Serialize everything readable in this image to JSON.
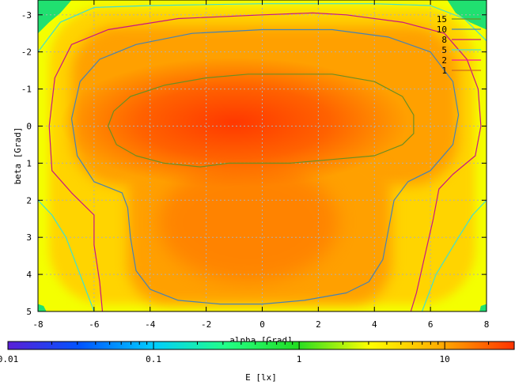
{
  "chart_data": {
    "type": "heatmap",
    "title": "",
    "xlabel": "alpha [Grad]",
    "ylabel": "beta [Grad]",
    "xlim": [
      -8,
      8
    ],
    "ylim": [
      -3.4,
      5
    ],
    "y_axis_direction": "top-to-bottom",
    "grid": true,
    "x_ticks": [
      -8,
      -6,
      -4,
      -2,
      0,
      2,
      4,
      6,
      8
    ],
    "x_tick_labels": [
      "-8",
      "-6",
      "-4",
      "-2",
      "0",
      "2",
      "4",
      "6",
      "8"
    ],
    "y_ticks": [
      -3,
      -2,
      -1,
      0,
      1,
      2,
      3,
      4,
      5
    ],
    "y_tick_labels": [
      "-3",
      "-2",
      "-1",
      "0",
      "1",
      "2",
      "3",
      "4",
      "5"
    ],
    "legend_position": "top-right",
    "contour_levels": [
      {
        "label": "15",
        "color": "#6b8e23"
      },
      {
        "label": "10",
        "color": "#4682b4"
      },
      {
        "label": "8",
        "color": "#c71585"
      },
      {
        "label": "5",
        "color": "#40e0d0"
      },
      {
        "label": "2",
        "color": "#ff1493"
      },
      {
        "label": "1",
        "color": "#d2691e"
      }
    ],
    "contours": [
      {
        "level": 15,
        "points": [
          [
            -5.5,
            0
          ],
          [
            -5.3,
            -0.4
          ],
          [
            -4.7,
            -0.8
          ],
          [
            -3.5,
            -1.1
          ],
          [
            -2,
            -1.3
          ],
          [
            -0.5,
            -1.4
          ],
          [
            1,
            -1.4
          ],
          [
            2.5,
            -1.4
          ],
          [
            4,
            -1.2
          ],
          [
            5,
            -0.8
          ],
          [
            5.4,
            -0.3
          ],
          [
            5.4,
            0.2
          ],
          [
            5,
            0.5
          ],
          [
            4,
            0.8
          ],
          [
            2.5,
            0.9
          ],
          [
            1,
            1
          ],
          [
            -1.2,
            1
          ],
          [
            -2.2,
            1.1
          ],
          [
            -3.5,
            1
          ],
          [
            -4.5,
            0.8
          ],
          [
            -5.2,
            0.5
          ],
          [
            -5.5,
            0
          ]
        ]
      },
      {
        "level": 10,
        "points": [
          [
            -6.8,
            -0.2
          ],
          [
            -6.5,
            -1.2
          ],
          [
            -5.8,
            -1.8
          ],
          [
            -4.5,
            -2.2
          ],
          [
            -2.5,
            -2.5
          ],
          [
            0,
            -2.6
          ],
          [
            2.5,
            -2.6
          ],
          [
            4.5,
            -2.4
          ],
          [
            6,
            -2
          ],
          [
            6.8,
            -1.2
          ],
          [
            7,
            -0.3
          ],
          [
            6.8,
            0.5
          ],
          [
            6,
            1.2
          ],
          [
            5.2,
            1.5
          ],
          [
            4.7,
            2
          ],
          [
            4.5,
            2.8
          ],
          [
            4.3,
            3.6
          ],
          [
            3.8,
            4.2
          ],
          [
            3,
            4.5
          ],
          [
            1.5,
            4.7
          ],
          [
            0,
            4.8
          ],
          [
            -1.5,
            4.8
          ],
          [
            -3,
            4.7
          ],
          [
            -4,
            4.4
          ],
          [
            -4.5,
            3.9
          ],
          [
            -4.7,
            3
          ],
          [
            -4.8,
            2.2
          ],
          [
            -5,
            1.8
          ],
          [
            -6,
            1.5
          ],
          [
            -6.6,
            0.8
          ],
          [
            -6.8,
            -0.2
          ]
        ]
      },
      {
        "level": 8,
        "points": [
          [
            -7.6,
            0
          ],
          [
            -7.4,
            -1.3
          ],
          [
            -6.8,
            -2.2
          ],
          [
            -5.5,
            -2.6
          ],
          [
            -3,
            -2.9
          ],
          [
            0,
            -3
          ],
          [
            1.8,
            -3.05
          ],
          [
            3,
            -3
          ],
          [
            5,
            -2.8
          ],
          [
            6.5,
            -2.5
          ],
          [
            7.3,
            -1.8
          ],
          [
            7.7,
            -1
          ],
          [
            7.8,
            0
          ],
          [
            7.6,
            0.8
          ],
          [
            6.8,
            1.3
          ],
          [
            6.3,
            1.7
          ],
          [
            6.1,
            2.5
          ],
          [
            5.8,
            3.5
          ],
          [
            5.5,
            4.5
          ],
          [
            5.3,
            5
          ]
        ]
      },
      {
        "level": 8,
        "points": [
          [
            -5.7,
            5
          ],
          [
            -5.8,
            4.2
          ],
          [
            -6,
            3.2
          ],
          [
            -6,
            2.4
          ],
          [
            -6.8,
            1.8
          ],
          [
            -7.5,
            1.2
          ],
          [
            -7.6,
            0
          ]
        ]
      },
      {
        "level": 5,
        "points": [
          [
            -8,
            -2
          ],
          [
            -7.2,
            -2.8
          ],
          [
            -6,
            -3.2
          ],
          [
            -4,
            -3.25
          ],
          [
            0,
            -3.3
          ],
          [
            4,
            -3.3
          ],
          [
            6,
            -3.25
          ],
          [
            7.2,
            -2.9
          ],
          [
            8,
            -2.3
          ]
        ]
      },
      {
        "level": 5,
        "points": [
          [
            -8,
            2
          ],
          [
            -7.5,
            2.4
          ],
          [
            -7,
            3
          ],
          [
            -6.5,
            4
          ],
          [
            -6,
            5
          ]
        ]
      },
      {
        "level": 5,
        "points": [
          [
            8,
            2
          ],
          [
            7.5,
            2.4
          ],
          [
            7,
            3
          ],
          [
            6.2,
            4
          ],
          [
            5.7,
            5
          ]
        ]
      }
    ],
    "colorbar": {
      "label": "E [lx]",
      "scale": "log",
      "range": [
        0.01,
        30
      ],
      "tick_labels": [
        "0.01",
        "0.1",
        "1",
        "10"
      ],
      "tick_values": [
        0.01,
        0.1,
        1,
        10
      ],
      "colors": [
        "#5a1fd6",
        "#0055ff",
        "#00ccff",
        "#22ff88",
        "#22dd22",
        "#ffff00",
        "#ffaa00",
        "#ff3300"
      ]
    },
    "field_colors": {
      "peak": "#ff3800",
      "inner": "#ff6200",
      "mid": "#ffa000",
      "outer": "#ffd400",
      "edge": "#f4ff00",
      "low": "#20e070"
    }
  }
}
